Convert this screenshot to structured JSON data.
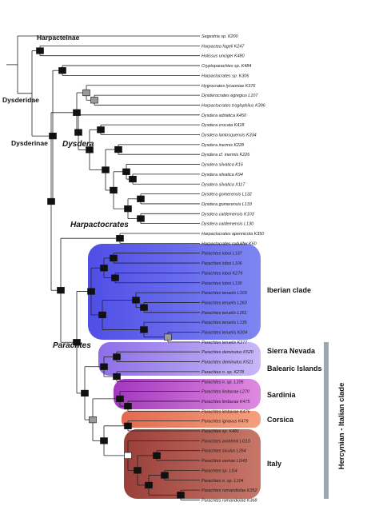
{
  "taxa": [
    "Segestria sp. K200",
    "Harpactea fageli K247",
    "Holissus unciger K480",
    "Cryptoparachtes sp. K484",
    "Harpactocrates sp. K306",
    "Hygrocrates lycaoniae K376",
    "Dysderocrates egregius L107",
    "Harpactocrates troglophilus K396",
    "Dysdera adriatica K450",
    "Dysdera crocata K418",
    "Dysdera lantosquensis K334",
    "Dysdera inermis K228",
    "Dysdera cf. inermis K226",
    "Dysdera silvatica K16",
    "Dysdera silvatica K94",
    "Dysdera silvatica X117",
    "Dysdera gomerensis L132",
    "Dysdera gomerensis L133",
    "Dysdera caldemensis K103",
    "Dysdera caldemensis L130",
    "Harpactocrates apennicola K350",
    "Harpactocrates radulifer K60",
    "Parachtes loboi L137",
    "Parachtes loboi L106",
    "Parachtes loboi K279",
    "Parachtes loboi L136",
    "Parachtes teruelis L103",
    "Parachtes teruelis L260",
    "Parachtes teruelis L261",
    "Parachtes teruelis L135",
    "Parachtes teruelis K204",
    "Parachtes teruelis K277",
    "Parachtes deminutus K520",
    "Parachtes deminutus K521",
    "Parachtes n. sp. K278",
    "Parachtes n. sp. L105",
    "Parachtes limbarae L270",
    "Parachtes limbarae K475",
    "Parachtes limbarae K476",
    "Parachtes ignavus K479",
    "Parachtes sp. K481",
    "Parachtes andreinii LG10",
    "Parachtes siculus L264",
    "Parachtes vernae LG43",
    "Parachtes sp. LG4",
    "Parachtes n. sp. L104",
    "Parachtes romandiolae K352",
    "Parachtes romandiolae K368"
  ],
  "node_labels": {
    "dysderidae": "Dysderidae",
    "harpacteinae": "Harpacteinae",
    "dysderinae": "Dysderinae",
    "dysdera": "Dysdera",
    "harpactocrates": "Harpactocrates",
    "parachtes": "Parachtes"
  },
  "clades": [
    {
      "label": "Iberian clade",
      "color": "#5a57e8"
    },
    {
      "label": "Sierra Nevada",
      "color": "#9f86ee"
    },
    {
      "label": "Balearic Islands",
      "color": "#9f86ee"
    },
    {
      "label": "Sardinia",
      "color": "#b246c4"
    },
    {
      "label": "Corsica",
      "color": "#e8765e"
    },
    {
      "label": "Italy",
      "color": "#a94a44"
    }
  ],
  "group_bar": {
    "label": "Hercynian - Italian clade",
    "color": "#9aa9b1"
  }
}
